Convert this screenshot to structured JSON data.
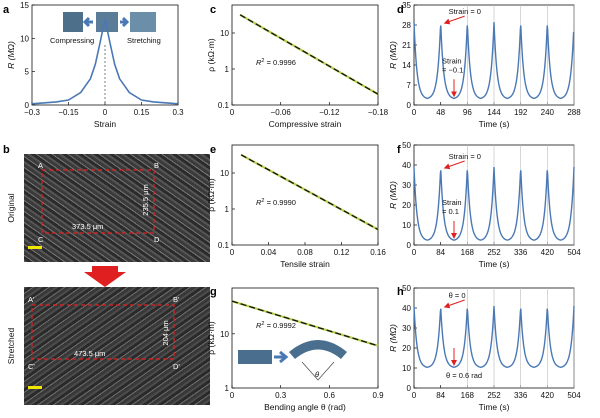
{
  "panels": {
    "a": {
      "label": "a",
      "compress_label": "Compressing",
      "stretch_label": "Stretching"
    },
    "b": {
      "label": "b",
      "original_label": "Original",
      "stretched_label": "Stretched",
      "orig_width": "373.5 μm",
      "orig_height": "235.5 μm",
      "str_width": "473.5 μm",
      "str_height": "204 μm",
      "corners_top": [
        "A",
        "B",
        "C",
        "D"
      ],
      "corners_bottom": [
        "A'",
        "B'",
        "C'",
        "D'"
      ]
    },
    "c": {
      "label": "c",
      "r2": "= 0.9996"
    },
    "d": {
      "label": "d",
      "strain0": "Strain = 0",
      "strain_low_1": "Strain",
      "strain_low_2": "= −0.1"
    },
    "e": {
      "label": "e",
      "r2": "= 0.9990"
    },
    "f": {
      "label": "f",
      "strain0": "Strain = 0",
      "strain_low_1": "Strain",
      "strain_low_2": "= 0.1"
    },
    "g": {
      "label": "g",
      "r2": "= 0.9992",
      "angle_symbol": "θ"
    },
    "h": {
      "label": "h",
      "theta0": "θ = 0",
      "theta_low": "θ = 0.6 rad"
    }
  },
  "colors": {
    "curve": "#4a78b5",
    "fit_dash": "#111111",
    "data_green": "#b6d14b",
    "arrow_red": "#e02020",
    "box_red": "#e02020",
    "scale_bar": "#f2e600"
  },
  "chart_data": [
    {
      "id": "a",
      "type": "line",
      "xlabel": "Strain",
      "ylabel": "R (MΩ)",
      "xticks": [
        "−0.3",
        "−0.15",
        "0",
        "0.15",
        "0.3"
      ],
      "yticks": [
        "0",
        "5",
        "10",
        "15"
      ],
      "xlim": [
        -0.3,
        0.3
      ],
      "ylim": [
        0,
        16
      ],
      "series": [
        {
          "x": [
            -0.3,
            -0.2,
            -0.15,
            -0.1,
            -0.06,
            -0.04,
            -0.02,
            0,
            0.02,
            0.04,
            0.06,
            0.1,
            0.15,
            0.2,
            0.3
          ],
          "y": [
            0.2,
            0.5,
            0.8,
            2.0,
            4.2,
            6.5,
            10.0,
            13.8,
            10.0,
            6.5,
            4.2,
            2.0,
            0.8,
            0.5,
            0.2
          ]
        }
      ]
    },
    {
      "id": "c",
      "type": "line",
      "xlabel": "Compressive strain",
      "ylabel": "ρ (kΩ·m)",
      "xticks": [
        "0",
        "−0.06",
        "−0.12",
        "−0.18"
      ],
      "yticks": [
        "0.1",
        "1",
        "10"
      ],
      "xlim": [
        0,
        -0.18
      ],
      "ylim_log": [
        0.1,
        60
      ],
      "log_y": true,
      "series": [
        {
          "x": [
            -0.01,
            -0.18
          ],
          "y": [
            32,
            0.2
          ]
        }
      ]
    },
    {
      "id": "d",
      "type": "line",
      "xlabel": "Time (s)",
      "ylabel": "R (MΩ)",
      "xticks": [
        "0",
        "48",
        "96",
        "144",
        "192",
        "240",
        "288"
      ],
      "yticks": [
        "0",
        "7",
        "14",
        "21",
        "28",
        "35"
      ],
      "xlim": [
        0,
        288
      ],
      "ylim": [
        0,
        35
      ],
      "peaks": [
        48,
        96,
        144,
        192,
        240,
        288
      ],
      "peak_value": 29,
      "min_value": 2
    },
    {
      "id": "e",
      "type": "line",
      "xlabel": "Tensile strain",
      "ylabel": "ρ (kΩ·m)",
      "xticks": [
        "0",
        "0.04",
        "0.08",
        "0.12",
        "0.16"
      ],
      "yticks": [
        "0.1",
        "1",
        "10"
      ],
      "xlim": [
        0,
        0.16
      ],
      "ylim_log": [
        0.1,
        60
      ],
      "log_y": true,
      "series": [
        {
          "x": [
            0.01,
            0.16
          ],
          "y": [
            32,
            0.27
          ]
        }
      ]
    },
    {
      "id": "f",
      "type": "line",
      "xlabel": "Time (s)",
      "ylabel": "R (MΩ)",
      "xticks": [
        "0",
        "84",
        "168",
        "252",
        "336",
        "420",
        "504"
      ],
      "yticks": [
        "0",
        "10",
        "20",
        "30",
        "40",
        "50"
      ],
      "xlim": [
        0,
        504
      ],
      "ylim": [
        0,
        50
      ],
      "peaks": [
        84,
        168,
        252,
        336,
        420,
        504
      ],
      "peak_value": 39,
      "min_value": 2
    },
    {
      "id": "g",
      "type": "line",
      "xlabel": "Bending angle θ (rad)",
      "ylabel": "ρ (kΩ·m)",
      "xticks": [
        "0",
        "0.3",
        "0.6",
        "0.9"
      ],
      "yticks": [
        "1",
        "10"
      ],
      "xlim": [
        0,
        0.9
      ],
      "ylim_log": [
        1,
        70
      ],
      "log_y": true,
      "series": [
        {
          "x": [
            0,
            0.9
          ],
          "y": [
            40,
            6
          ]
        }
      ]
    },
    {
      "id": "h",
      "type": "line",
      "xlabel": "Time (s)",
      "ylabel": "R (MΩ)",
      "xticks": [
        "0",
        "84",
        "168",
        "252",
        "336",
        "420",
        "504"
      ],
      "yticks": [
        "0",
        "10",
        "20",
        "30",
        "40",
        "50"
      ],
      "xlim": [
        0,
        504
      ],
      "ylim": [
        0,
        50
      ],
      "peaks": [
        84,
        168,
        252,
        336,
        420,
        504
      ],
      "peak_value": 41,
      "min_value": 10
    }
  ]
}
